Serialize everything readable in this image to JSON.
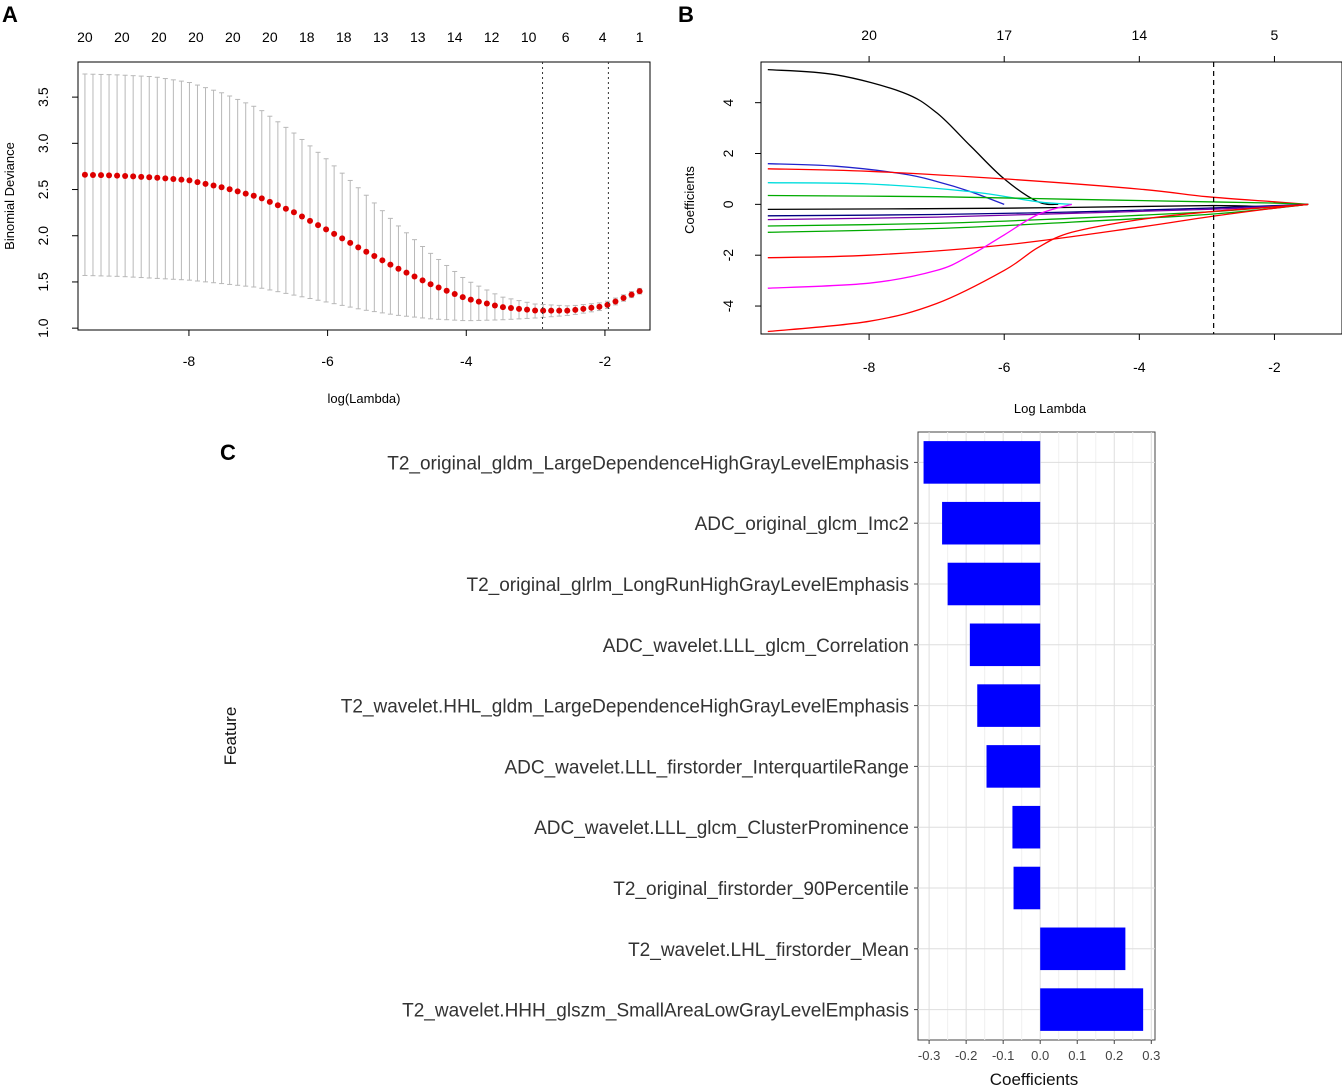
{
  "panels": {
    "a": "A",
    "b": "B",
    "c": "C"
  },
  "chart_data": [
    {
      "panel": "A",
      "type": "line",
      "title": "",
      "xlabel": "log(Lambda)",
      "ylabel": "Binomial Deviance",
      "xlim": [
        -9.6,
        -1.35
      ],
      "ylim": [
        0.98,
        3.88
      ],
      "x_ticks": [
        -8,
        -6,
        -4,
        -2
      ],
      "y_ticks": [
        1.0,
        1.5,
        2.0,
        2.5,
        3.0,
        3.5
      ],
      "top_axis_labels": [
        "20",
        "20",
        "20",
        "20",
        "20",
        "20",
        "18",
        "18",
        "13",
        "13",
        "14",
        "12",
        "10",
        "6",
        "4",
        "1"
      ],
      "vlines": [
        -2.9,
        -1.95
      ],
      "series": [
        {
          "name": "Binomial Deviance (mean)",
          "color": "#dd0000",
          "x": [
            -9.5,
            -9.0,
            -8.5,
            -8.0,
            -7.5,
            -7.0,
            -6.5,
            -6.0,
            -5.5,
            -5.0,
            -4.5,
            -4.0,
            -3.5,
            -3.0,
            -2.5,
            -2.0,
            -1.5
          ],
          "y": [
            2.66,
            2.65,
            2.63,
            2.6,
            2.52,
            2.42,
            2.26,
            2.06,
            1.85,
            1.65,
            1.47,
            1.32,
            1.23,
            1.19,
            1.19,
            1.24,
            1.4
          ]
        },
        {
          "name": "Upper error bar",
          "color": "#bbbbbb",
          "x": [
            -9.5,
            -9.0,
            -8.5,
            -8.0,
            -7.5,
            -7.0,
            -6.5,
            -6.0,
            -5.5,
            -5.0,
            -4.5,
            -4.0,
            -3.5,
            -3.0,
            -2.5,
            -2.0,
            -1.5
          ],
          "y": [
            3.75,
            3.74,
            3.72,
            3.66,
            3.54,
            3.38,
            3.12,
            2.82,
            2.48,
            2.12,
            1.8,
            1.52,
            1.34,
            1.26,
            1.24,
            1.28,
            1.43
          ]
        },
        {
          "name": "Lower error bar",
          "color": "#bbbbbb",
          "x": [
            -9.5,
            -9.0,
            -8.5,
            -8.0,
            -7.5,
            -7.0,
            -6.5,
            -6.0,
            -5.5,
            -5.0,
            -4.5,
            -4.0,
            -3.5,
            -3.0,
            -2.5,
            -2.0,
            -1.5
          ],
          "y": [
            1.57,
            1.56,
            1.54,
            1.52,
            1.48,
            1.44,
            1.36,
            1.28,
            1.2,
            1.14,
            1.1,
            1.08,
            1.09,
            1.11,
            1.14,
            1.2,
            1.37
          ]
        }
      ]
    },
    {
      "panel": "B",
      "type": "line",
      "title": "",
      "xlabel": "Log Lambda",
      "ylabel": "Coefficients",
      "xlim": [
        -9.6,
        -1.0
      ],
      "ylim": [
        -5.1,
        5.6
      ],
      "x_ticks": [
        -8,
        -6,
        -4,
        -2
      ],
      "y_ticks": [
        -4,
        -2,
        0,
        2,
        4
      ],
      "top_axis_labels": [
        "20",
        "17",
        "14",
        "5"
      ],
      "top_axis_positions": [
        -8,
        -6,
        -4,
        -2
      ],
      "vlines": [
        -2.9
      ],
      "series": [
        {
          "name": "path 1",
          "color": "#000000",
          "x": [
            -9.5,
            -8.5,
            -7.5,
            -7.0,
            -6.5,
            -6.0,
            -5.5,
            -5.2
          ],
          "y": [
            5.3,
            5.1,
            4.4,
            3.6,
            2.3,
            1.0,
            0.1,
            0.0
          ]
        },
        {
          "name": "path 2",
          "color": "#000000",
          "x": [
            -9.5,
            -6.0,
            -3.0,
            -2.0,
            -1.5
          ],
          "y": [
            -0.2,
            -0.15,
            -0.05,
            -0.1,
            0.0
          ]
        },
        {
          "name": "path 3",
          "color": "#2222cc",
          "x": [
            -9.5,
            -8.5,
            -7.5,
            -7.0,
            -6.5,
            -6.0
          ],
          "y": [
            1.6,
            1.5,
            1.2,
            0.9,
            0.5,
            0.0
          ]
        },
        {
          "name": "path 4",
          "color": "#ff0000",
          "x": [
            -9.5,
            -8.0,
            -6.0,
            -4.0,
            -3.0,
            -2.0,
            -1.5
          ],
          "y": [
            1.4,
            1.3,
            1.0,
            0.6,
            0.3,
            0.1,
            0.0
          ]
        },
        {
          "name": "path 5",
          "color": "#00dddd",
          "x": [
            -9.5,
            -8.0,
            -6.5,
            -5.5,
            -5.0
          ],
          "y": [
            0.85,
            0.8,
            0.5,
            0.1,
            0.0
          ]
        },
        {
          "name": "path 6",
          "color": "#00aa00",
          "x": [
            -9.5,
            -7.0,
            -5.0,
            -3.0,
            -2.0,
            -1.5
          ],
          "y": [
            0.35,
            0.3,
            0.2,
            0.1,
            0.05,
            0.0
          ]
        },
        {
          "name": "path 7",
          "color": "#000080",
          "x": [
            -9.5,
            -7.0,
            -5.0,
            -3.0,
            -2.0,
            -1.5
          ],
          "y": [
            -0.45,
            -0.4,
            -0.3,
            -0.15,
            -0.05,
            0.0
          ]
        },
        {
          "name": "path 8",
          "color": "#7a00a8",
          "x": [
            -9.5,
            -7.0,
            -5.0,
            -3.0,
            -2.0,
            -1.5
          ],
          "y": [
            -0.6,
            -0.5,
            -0.35,
            -0.2,
            -0.08,
            0.0
          ]
        },
        {
          "name": "path 9",
          "color": "#00aa00",
          "x": [
            -9.5,
            -7.0,
            -5.0,
            -3.0,
            -2.0,
            -1.5
          ],
          "y": [
            -1.1,
            -0.95,
            -0.7,
            -0.4,
            -0.15,
            0.0
          ]
        },
        {
          "name": "path 10",
          "color": "#00aa00",
          "x": [
            -9.5,
            -7.0,
            -5.0,
            -3.0,
            -2.0,
            -1.5
          ],
          "y": [
            -0.85,
            -0.75,
            -0.55,
            -0.3,
            -0.1,
            0.0
          ]
        },
        {
          "name": "path 11",
          "color": "#ff0000",
          "x": [
            -9.5,
            -8.0,
            -6.0,
            -4.0,
            -3.0,
            -2.0,
            -1.5
          ],
          "y": [
            -2.1,
            -2.0,
            -1.6,
            -0.9,
            -0.5,
            -0.15,
            0.0
          ]
        },
        {
          "name": "path 12",
          "color": "#ff00ff",
          "x": [
            -9.5,
            -8.0,
            -7.0,
            -6.5,
            -6.0,
            -5.5,
            -5.0
          ],
          "y": [
            -3.3,
            -3.1,
            -2.6,
            -2.0,
            -1.2,
            -0.4,
            0.0
          ]
        },
        {
          "name": "path 13",
          "color": "#ff0000",
          "x": [
            -9.5,
            -8.0,
            -7.0,
            -6.0,
            -5.5,
            -5.0,
            -4.0,
            -3.0,
            -2.0,
            -1.5
          ],
          "y": [
            -5.0,
            -4.6,
            -3.9,
            -2.6,
            -1.7,
            -1.1,
            -0.6,
            -0.3,
            -0.1,
            0.0
          ]
        }
      ]
    },
    {
      "panel": "C",
      "type": "bar",
      "orientation": "horizontal",
      "title": "",
      "xlabel": "Coefficients",
      "ylabel": "Feature",
      "xlim": [
        -0.33,
        0.31
      ],
      "x_ticks": [
        -0.3,
        -0.2,
        -0.1,
        0.0,
        0.1,
        0.2,
        0.3
      ],
      "x_tick_labels": [
        "-0.3",
        "-0.2",
        "-0.1",
        "0.0",
        "0.1",
        "0.2",
        "0.3"
      ],
      "bar_color": "#0000ff",
      "categories": [
        "T2_original_gldm_LargeDependenceHighGrayLevelEmphasis",
        "ADC_original_glcm_Imc2",
        "T2_original_glrlm_LongRunHighGrayLevelEmphasis",
        "ADC_wavelet.LLL_glcm_Correlation",
        "T2_wavelet.HHL_gldm_LargeDependenceHighGrayLevelEmphasis",
        "ADC_wavelet.LLL_firstorder_InterquartileRange",
        "ADC_wavelet.LLL_glcm_ClusterProminence",
        "T2_original_firstorder_90Percentile",
        "T2_wavelet.LHL_firstorder_Mean",
        "T2_wavelet.HHH_glszm_SmallAreaLowGrayLevelEmphasis"
      ],
      "values": [
        -0.315,
        -0.265,
        -0.25,
        -0.19,
        -0.17,
        -0.145,
        -0.075,
        -0.072,
        0.23,
        0.278
      ]
    }
  ]
}
